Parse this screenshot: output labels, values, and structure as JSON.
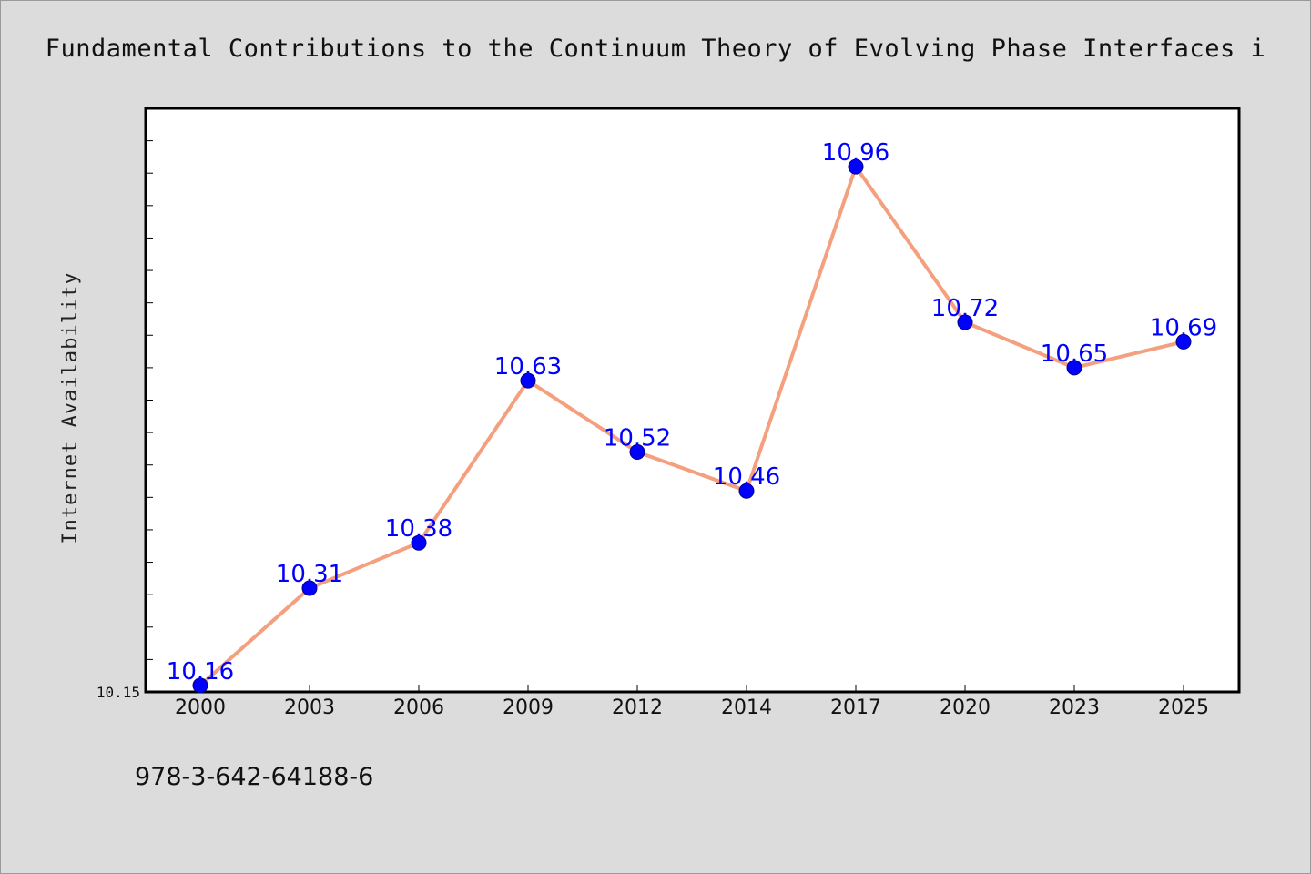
{
  "title": "Fundamental Contributions to the Continuum Theory of Evolving Phase Interfaces i",
  "footer": "978-3-642-64188-6",
  "colors": {
    "background": "#dcdcdc",
    "plot_background": "#ffffff",
    "line": "#f4a07e",
    "marker": "#0000ff",
    "labels": "#0000ff"
  },
  "chart_data": {
    "type": "line",
    "title": "Fundamental Contributions to the Continuum Theory of Evolving Phase Interfaces i",
    "xlabel": "",
    "ylabel": "Internet Availability",
    "categories": [
      "2000",
      "2003",
      "2006",
      "2009",
      "2012",
      "2014",
      "2017",
      "2020",
      "2023",
      "2025"
    ],
    "series": [
      {
        "values": [
          10.16,
          10.31,
          10.38,
          10.63,
          10.52,
          10.46,
          10.96,
          10.72,
          10.65,
          10.69
        ],
        "data_labels": [
          "10.16",
          "10.31",
          "10.38",
          "10.63",
          "10.52",
          "10.46",
          "10.96",
          "10.72",
          "10.65",
          "10.69"
        ]
      }
    ],
    "ylim": [
      10.15,
      11.05
    ],
    "y_tick_labels": [
      "10.15"
    ],
    "grid": false,
    "legend": "none"
  }
}
